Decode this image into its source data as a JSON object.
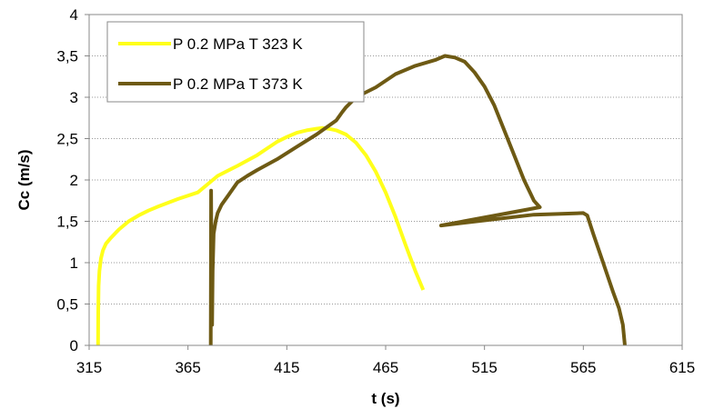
{
  "chart_data": {
    "type": "line",
    "title": "",
    "xlabel": "t (s)",
    "ylabel": "Cc (m/s)",
    "xlim": [
      315,
      615
    ],
    "ylim": [
      0,
      4
    ],
    "x_ticks": [
      "315",
      "365",
      "415",
      "465",
      "515",
      "565",
      "615"
    ],
    "y_ticks": [
      "0",
      "0,5",
      "1",
      "1,5",
      "2",
      "2,5",
      "3",
      "3,5",
      "4"
    ],
    "grid": "horizontal",
    "legend_position": "top-left",
    "series": [
      {
        "name": "P 0.2 MPa T 323 K",
        "color": "#ffff1a",
        "x": [
          319.5,
          319.6,
          319.8,
          320.2,
          321,
          322,
          323.5,
          326,
          330,
          335,
          340,
          345,
          350,
          360,
          370,
          375,
          380,
          390,
          400,
          405,
          410,
          415,
          420,
          425,
          430,
          433,
          436,
          440,
          445,
          450,
          455,
          460,
          465,
          470,
          475,
          480,
          484
        ],
        "y": [
          0,
          0.4,
          0.72,
          0.9,
          1.05,
          1.15,
          1.23,
          1.3,
          1.4,
          1.5,
          1.57,
          1.63,
          1.68,
          1.77,
          1.85,
          1.95,
          2.05,
          2.17,
          2.3,
          2.38,
          2.46,
          2.52,
          2.57,
          2.6,
          2.62,
          2.63,
          2.62,
          2.6,
          2.55,
          2.45,
          2.3,
          2.1,
          1.85,
          1.55,
          1.22,
          0.9,
          0.67
        ]
      },
      {
        "name": "P 0.2 MPa T 373 K",
        "color": "#6e5a14",
        "x": [
          376.5,
          376.7,
          377,
          377.2,
          377.5,
          378,
          379,
          380,
          382,
          385,
          390,
          395,
          400,
          410,
          420,
          430,
          440,
          443,
          445,
          450,
          460,
          470,
          480,
          490,
          495,
          500,
          505,
          510,
          515,
          520,
          525,
          530,
          535,
          540,
          543,
          493,
          540,
          565,
          567,
          570,
          575,
          580,
          583,
          585,
          586
        ],
        "y": [
          0,
          1.87,
          0.4,
          0.25,
          0.9,
          1.35,
          1.5,
          1.6,
          1.7,
          1.8,
          1.97,
          2.05,
          2.12,
          2.25,
          2.4,
          2.55,
          2.72,
          2.82,
          2.88,
          3,
          3.12,
          3.28,
          3.38,
          3.45,
          3.5,
          3.48,
          3.43,
          3.3,
          3.13,
          2.9,
          2.6,
          2.3,
          2,
          1.75,
          1.67,
          1.45,
          1.58,
          1.6,
          1.57,
          1.35,
          1,
          0.65,
          0.45,
          0.25,
          0
        ]
      }
    ]
  }
}
